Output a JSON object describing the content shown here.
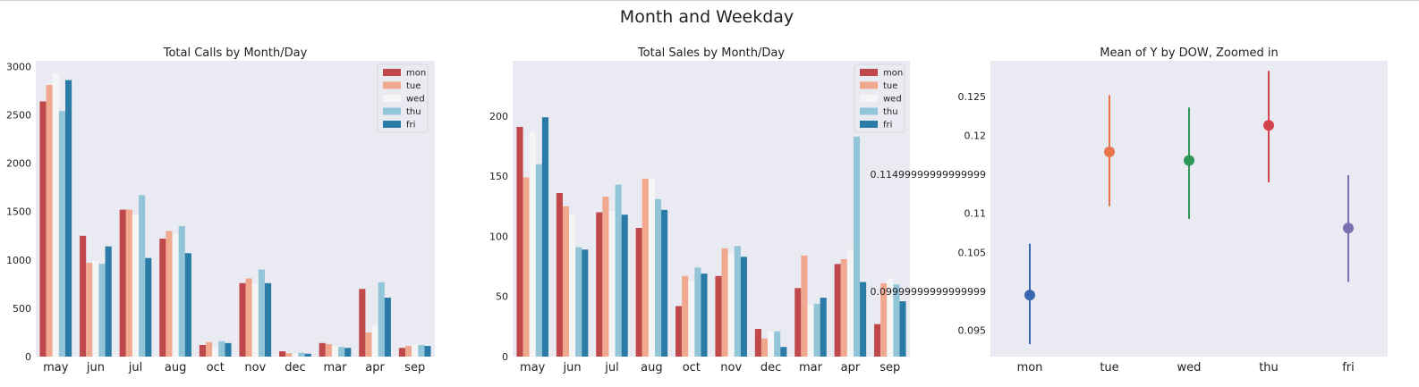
{
  "figure": {
    "title": "Month and Weekday"
  },
  "chart_data": [
    {
      "type": "bar",
      "title": "Total Calls by Month/Day",
      "xlabel": "",
      "ylabel": "",
      "categories": [
        "may",
        "jun",
        "jul",
        "aug",
        "oct",
        "nov",
        "dec",
        "mar",
        "apr",
        "sep"
      ],
      "ylim": [
        0,
        3060
      ],
      "yticks": [
        0,
        500,
        1000,
        1500,
        2000,
        2500,
        3000
      ],
      "grid": false,
      "legend_position": "top-right",
      "series": [
        {
          "name": "mon",
          "color": "#c0474a",
          "values": [
            2640,
            1250,
            1520,
            1220,
            120,
            760,
            55,
            140,
            700,
            90
          ]
        },
        {
          "name": "tue",
          "color": "#f0a88e",
          "values": [
            2810,
            970,
            1520,
            1300,
            150,
            810,
            35,
            130,
            250,
            110
          ]
        },
        {
          "name": "wed",
          "color": "#f5f5f6",
          "values": [
            2930,
            990,
            1470,
            1270,
            100,
            760,
            30,
            110,
            330,
            120
          ]
        },
        {
          "name": "thu",
          "color": "#92c5d8",
          "values": [
            2540,
            960,
            1670,
            1350,
            160,
            900,
            40,
            100,
            770,
            120
          ]
        },
        {
          "name": "fri",
          "color": "#2a7ba6",
          "values": [
            2860,
            1140,
            1020,
            1070,
            140,
            760,
            30,
            90,
            610,
            110
          ]
        }
      ]
    },
    {
      "type": "bar",
      "title": "Total Sales by Month/Day",
      "xlabel": "",
      "ylabel": "",
      "categories": [
        "may",
        "jun",
        "jul",
        "aug",
        "oct",
        "nov",
        "dec",
        "mar",
        "apr",
        "sep"
      ],
      "ylim": [
        0,
        246
      ],
      "yticks": [
        0,
        50,
        100,
        150,
        200
      ],
      "grid": false,
      "legend_position": "top-right",
      "series": [
        {
          "name": "mon",
          "color": "#c0474a",
          "values": [
            191,
            136,
            120,
            107,
            42,
            67,
            23,
            57,
            77,
            27
          ]
        },
        {
          "name": "tue",
          "color": "#f0a88e",
          "values": [
            149,
            125,
            133,
            148,
            67,
            90,
            15,
            84,
            81,
            61
          ]
        },
        {
          "name": "wed",
          "color": "#f5f5f6",
          "values": [
            187,
            118,
            121,
            148,
            63,
            85,
            21,
            43,
            89,
            65
          ]
        },
        {
          "name": "thu",
          "color": "#92c5d8",
          "values": [
            160,
            91,
            143,
            131,
            74,
            92,
            21,
            44,
            183,
            60
          ]
        },
        {
          "name": "fri",
          "color": "#2a7ba6",
          "values": [
            199,
            89,
            118,
            122,
            69,
            83,
            8,
            49,
            62,
            46
          ]
        }
      ]
    },
    {
      "type": "scatter",
      "title": "Mean of Y by DOW, Zoomed in",
      "xlabel": "",
      "ylabel": "",
      "categories": [
        "mon",
        "tue",
        "wed",
        "thu",
        "fri"
      ],
      "ylim": [
        0.0916,
        0.1296
      ],
      "ytick_values": [
        0.095,
        0.1,
        0.105,
        0.11,
        0.115,
        0.12,
        0.125
      ],
      "ytick_labels": [
        "0.095",
        "0.09999999999999999",
        "0.105",
        "0.11",
        "0.11499999999999999",
        "0.12",
        "0.125"
      ],
      "grid": false,
      "points": [
        {
          "label": "mon",
          "color": "#3a68ae",
          "mean": 0.0995,
          "low": 0.0932,
          "high": 0.1061
        },
        {
          "label": "tue",
          "color": "#e8764a",
          "mean": 0.1179,
          "low": 0.1109,
          "high": 0.1252
        },
        {
          "label": "wed",
          "color": "#2e9757",
          "mean": 0.1168,
          "low": 0.1093,
          "high": 0.1236
        },
        {
          "label": "thu",
          "color": "#d1424a",
          "mean": 0.1213,
          "low": 0.114,
          "high": 0.1283
        },
        {
          "label": "fri",
          "color": "#7c6fb0",
          "mean": 0.1081,
          "low": 0.1012,
          "high": 0.1149
        }
      ]
    }
  ]
}
